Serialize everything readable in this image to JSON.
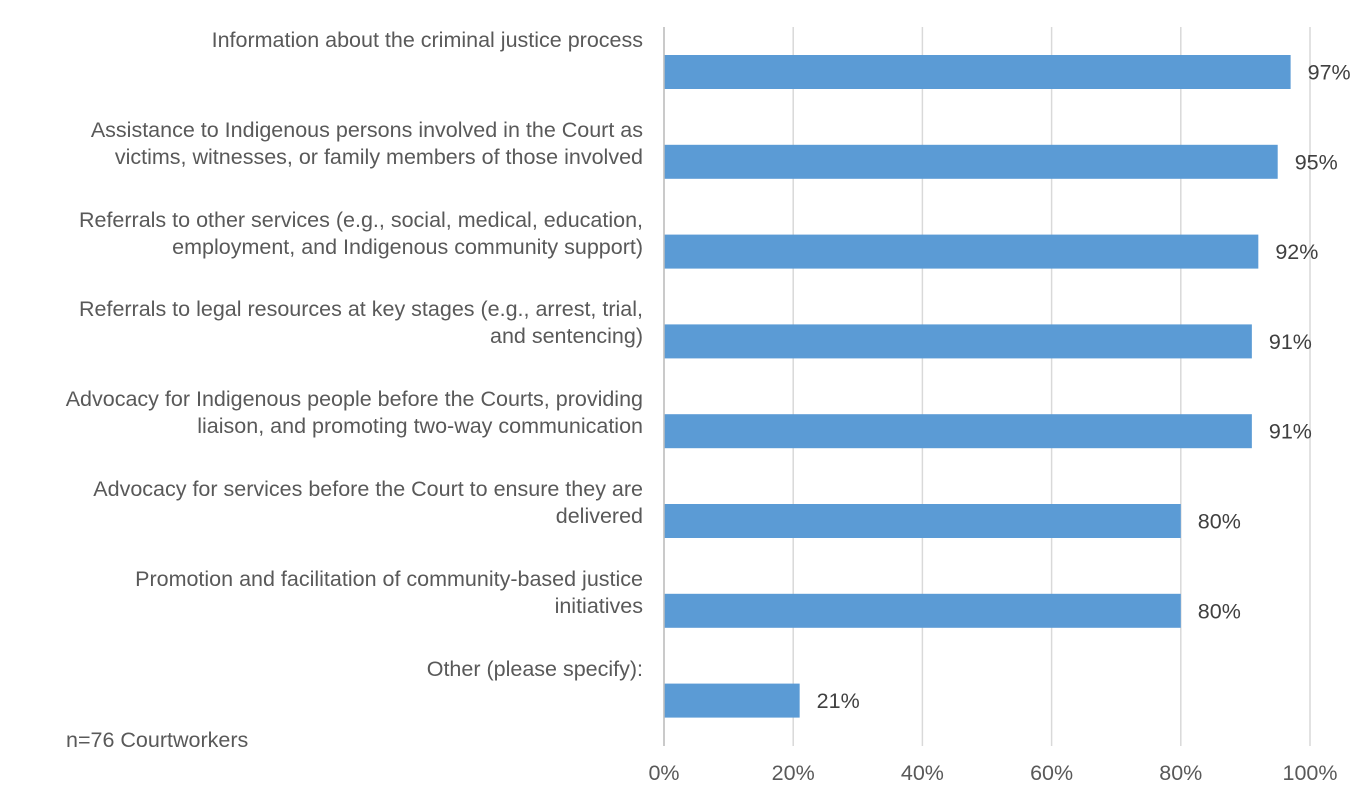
{
  "chart_data": {
    "type": "bar",
    "orientation": "horizontal",
    "categories": [
      "Information about the criminal justice process",
      "Assistance to Indigenous persons involved in the Court as\nvictims, witnesses, or family members of those involved",
      "Referrals to other services (e.g., social, medical, education,\nemployment, and Indigenous community support)",
      "Referrals to legal resources at key stages (e.g., arrest, trial,\nand sentencing)",
      "Advocacy for Indigenous people before the Courts, providing\nliaison, and promoting two-way communication",
      "Advocacy for services before the Court to ensure they are\ndelivered",
      "Promotion and facilitation of community-based justice\ninitiatives",
      "Other (please specify):"
    ],
    "values": [
      97,
      95,
      92,
      91,
      91,
      80,
      80,
      21
    ],
    "data_labels": [
      "97%",
      "95%",
      "92%",
      "91%",
      "91%",
      "80%",
      "80%",
      "21%"
    ],
    "xlim": [
      0,
      100
    ],
    "x_ticks": [
      "0%",
      "20%",
      "40%",
      "60%",
      "80%",
      "100%"
    ],
    "grid": true,
    "legend": "none",
    "bar_color": "#5B9BD5",
    "note": "n=76 Courtworkers"
  }
}
